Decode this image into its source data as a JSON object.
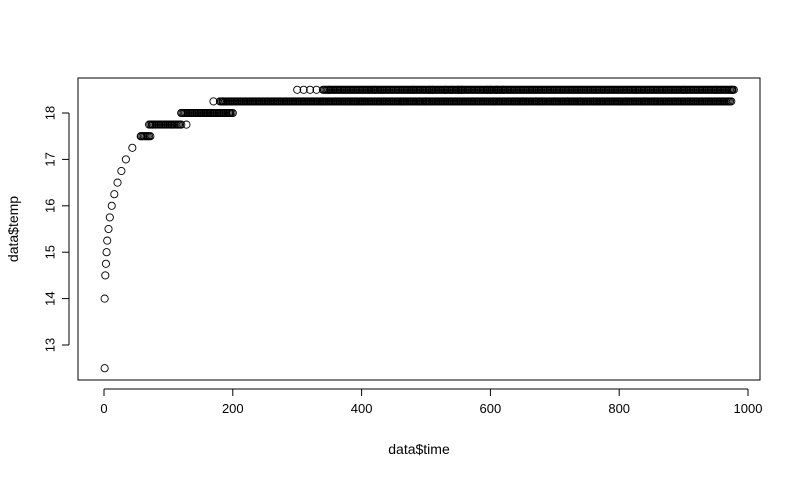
{
  "chart_data": {
    "type": "scatter",
    "title": "",
    "xlabel": "data$time",
    "ylabel": "data$temp",
    "xlim": [
      -20,
      1000
    ],
    "ylim": [
      12.5,
      18.5
    ],
    "xticks": [
      "0",
      "200",
      "400",
      "600",
      "800",
      "1000"
    ],
    "yticks": [
      "13",
      "14",
      "15",
      "16",
      "17",
      "18"
    ],
    "grid": false,
    "marker": "open-circle",
    "colors": {
      "marker": "#000000",
      "axis": "#000000",
      "background": "#ffffff"
    },
    "series": [
      {
        "points": [
          [
            1,
            12.5
          ],
          [
            1,
            14.0
          ],
          [
            2,
            14.5
          ],
          [
            3,
            14.75
          ],
          [
            4,
            15.0
          ],
          [
            5,
            15.25
          ],
          [
            7,
            15.5
          ],
          [
            9,
            15.75
          ],
          [
            12,
            16.0
          ],
          [
            16,
            16.25
          ],
          [
            21,
            16.5
          ],
          [
            27,
            16.75
          ],
          [
            34,
            17.0
          ],
          [
            44,
            17.25
          ],
          [
            57,
            17.5
          ],
          [
            75,
            17.75
          ],
          [
            105,
            17.75
          ],
          [
            128,
            17.75
          ],
          [
            120,
            18.0
          ],
          [
            160,
            18.0
          ],
          [
            195,
            18.0
          ],
          [
            170,
            18.25
          ],
          [
            185,
            18.25
          ],
          [
            300,
            18.5
          ],
          [
            310,
            18.5
          ],
          [
            320,
            18.5
          ],
          [
            330,
            18.5
          ],
          [
            340,
            18.25
          ],
          [
            350,
            18.5
          ],
          [
            360,
            18.25
          ],
          [
            380,
            18.25
          ],
          [
            390,
            18.25
          ],
          [
            400,
            18.25
          ],
          [
            420,
            18.5
          ],
          [
            460,
            18.25
          ],
          [
            465,
            18.25
          ],
          [
            480,
            18.5
          ],
          [
            490,
            18.25
          ],
          [
            500,
            18.25
          ],
          [
            505,
            18.5
          ],
          [
            510,
            18.5
          ],
          [
            530,
            18.5
          ],
          [
            540,
            18.5
          ],
          [
            550,
            18.5
          ],
          [
            555,
            18.5
          ],
          [
            595,
            18.5
          ],
          [
            600,
            18.5
          ],
          [
            605,
            18.25
          ],
          [
            610,
            18.5
          ],
          [
            620,
            18.5
          ],
          [
            640,
            18.25
          ],
          [
            650,
            18.25
          ],
          [
            670,
            18.25
          ],
          [
            680,
            18.25
          ],
          [
            700,
            18.25
          ],
          [
            720,
            18.25
          ],
          [
            740,
            18.25
          ],
          [
            760,
            18.25
          ],
          [
            765,
            18.25
          ],
          [
            770,
            18.25
          ],
          [
            800,
            18.25
          ],
          [
            810,
            18.25
          ],
          [
            840,
            18.25
          ],
          [
            855,
            18.25
          ],
          [
            860,
            18.25
          ],
          [
            900,
            18.5
          ],
          [
            950,
            18.5
          ],
          [
            975,
            18.5
          ]
        ],
        "runs": [
          {
            "x_from": 58,
            "x_to": 72,
            "y": 17.5
          },
          {
            "x_from": 70,
            "x_to": 120,
            "y": 17.75
          },
          {
            "x_from": 120,
            "x_to": 200,
            "y": 18.0
          },
          {
            "x_from": 180,
            "x_to": 975,
            "y": 18.25
          },
          {
            "x_from": 340,
            "x_to": 978,
            "y": 18.5
          }
        ]
      }
    ]
  }
}
